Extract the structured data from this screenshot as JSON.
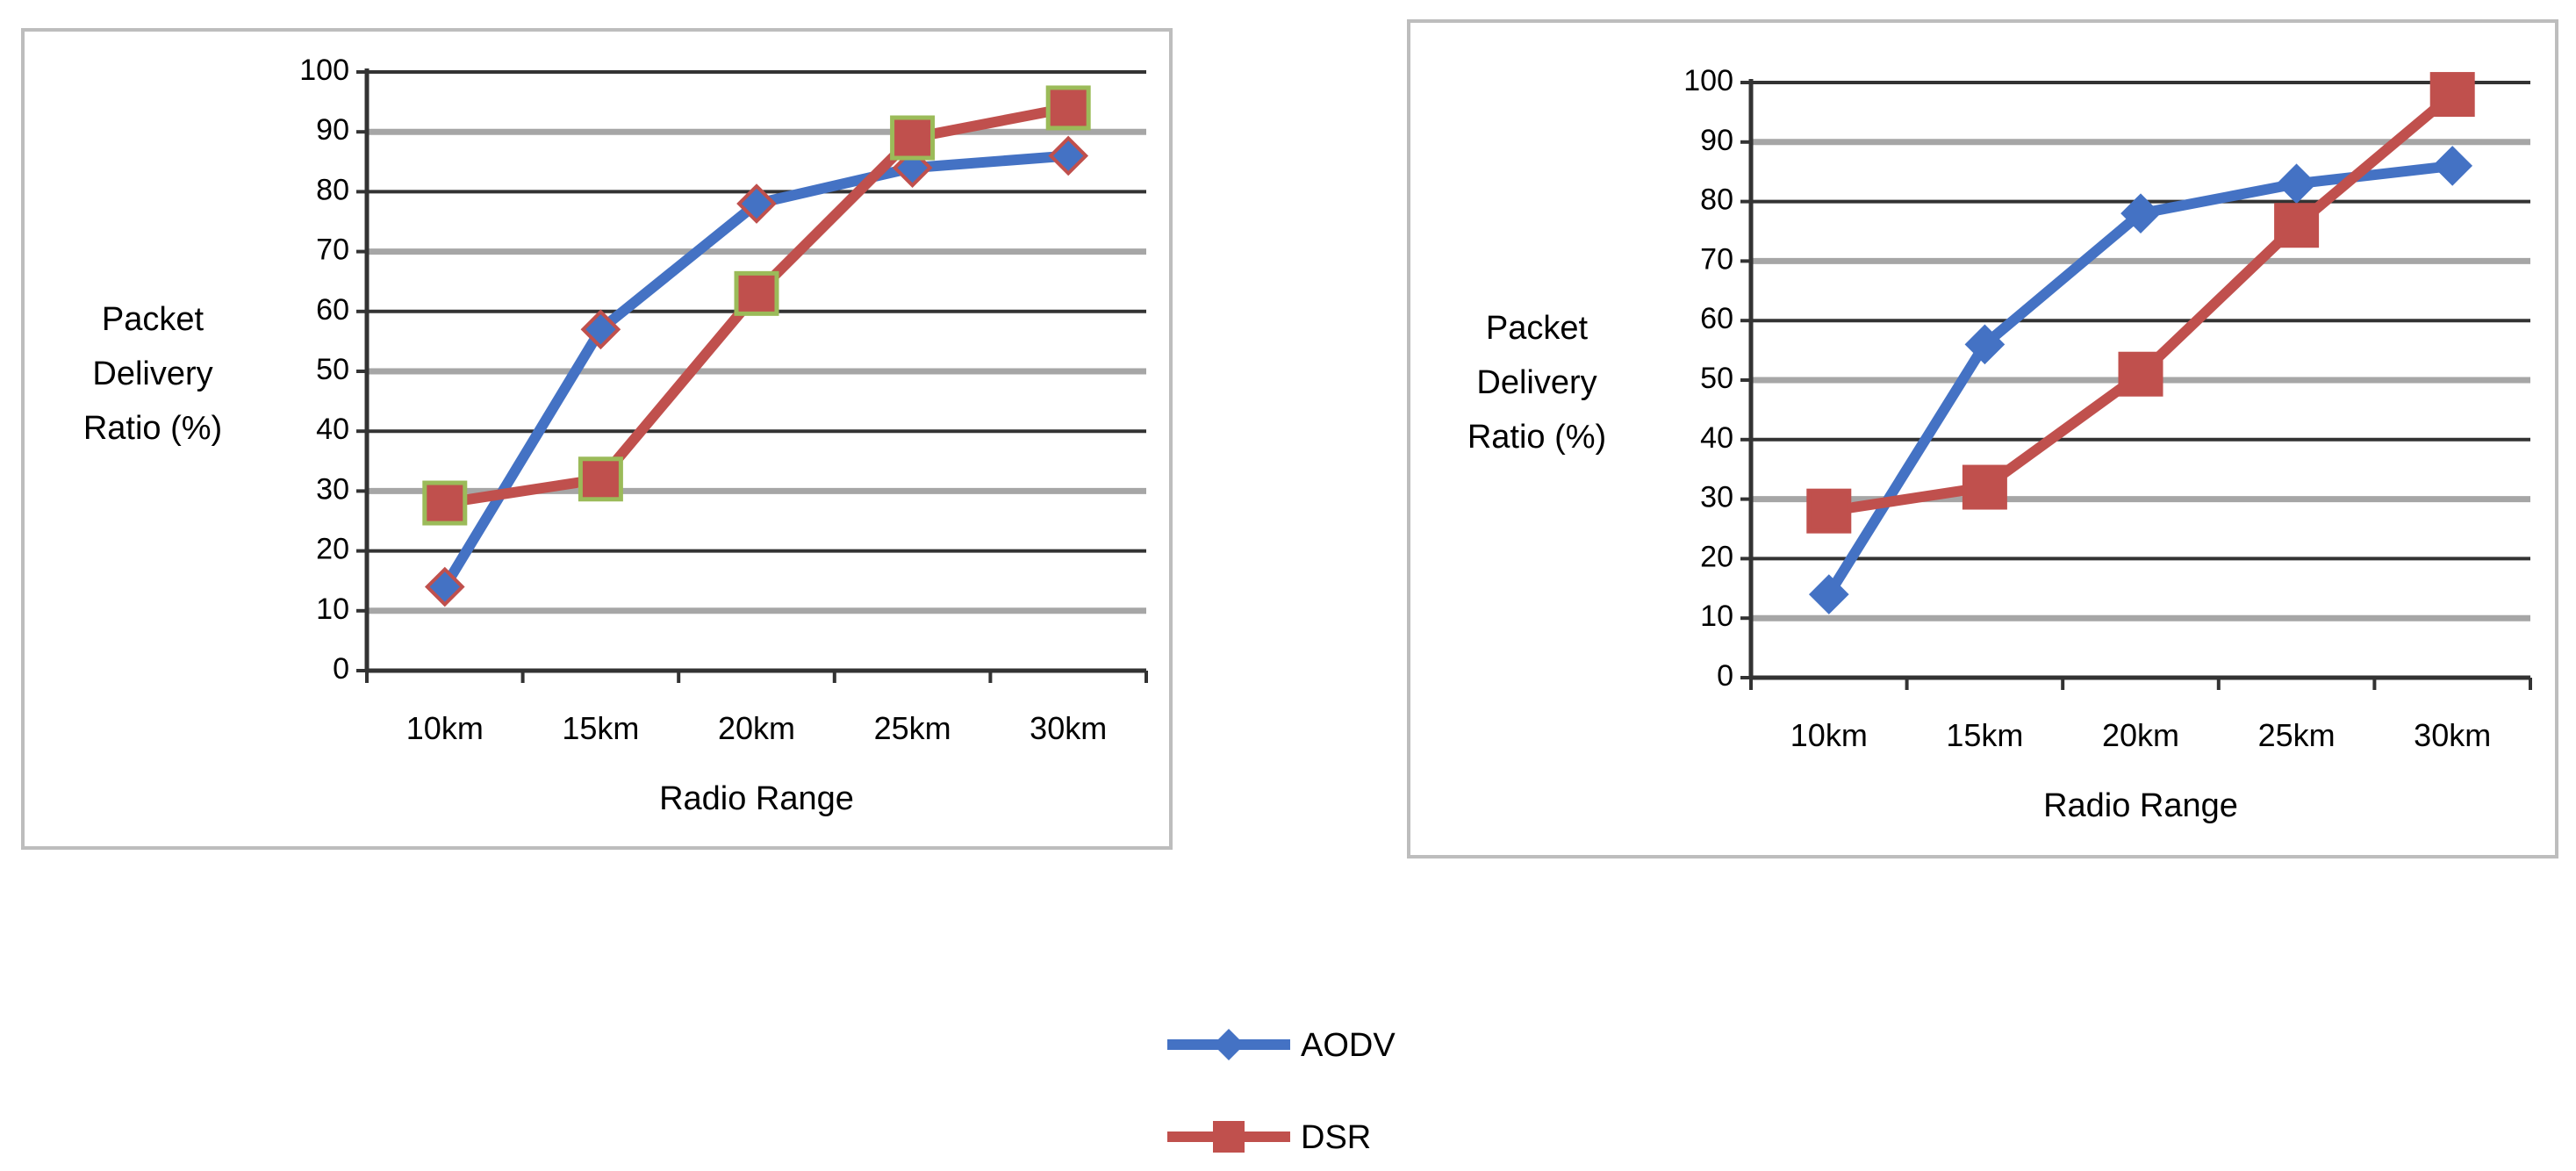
{
  "chart_data": [
    {
      "type": "line",
      "title": "",
      "xlabel": "Radio Range",
      "ylabel_lines": [
        "Packet",
        "Delivery",
        "Ratio (%)"
      ],
      "categories": [
        "10km",
        "15km",
        "20km",
        "25km",
        "30km"
      ],
      "ylim": [
        0,
        100
      ],
      "yticks": [
        0,
        10,
        20,
        30,
        40,
        50,
        60,
        70,
        80,
        90,
        100
      ],
      "grid": true,
      "series": [
        {
          "name": "AODV",
          "values": [
            14,
            57,
            78,
            84,
            86
          ],
          "color": "#4472c4",
          "marker": "diamond",
          "marker_fill": "#4472c4",
          "marker_edge": "#c0504d"
        },
        {
          "name": "DSR",
          "values": [
            28,
            32,
            63,
            89,
            94
          ],
          "color": "#c0504d",
          "marker": "square",
          "marker_fill": "#c0504d",
          "marker_edge": "#9bbb59"
        }
      ]
    },
    {
      "type": "line",
      "title": "",
      "xlabel": "Radio Range",
      "ylabel_lines": [
        "Packet",
        "Delivery",
        "Ratio (%)"
      ],
      "categories": [
        "10km",
        "15km",
        "20km",
        "25km",
        "30km"
      ],
      "ylim": [
        0,
        100
      ],
      "yticks": [
        0,
        10,
        20,
        30,
        40,
        50,
        60,
        70,
        80,
        90,
        100
      ],
      "grid": true,
      "series": [
        {
          "name": "AODV",
          "values": [
            14,
            56,
            78,
            83,
            86
          ],
          "color": "#4472c4",
          "marker": "diamond",
          "marker_fill": "#4472c4",
          "marker_edge": "#4472c4"
        },
        {
          "name": "DSR",
          "values": [
            28,
            32,
            51,
            76,
            98
          ],
          "color": "#c0504d",
          "marker": "square",
          "marker_fill": "#c0504d",
          "marker_edge": "#c0504d"
        }
      ]
    }
  ],
  "legend": {
    "placement": "bottom-center",
    "items": [
      {
        "label": "AODV",
        "color": "#4472c4",
        "marker": "diamond"
      },
      {
        "label": "DSR",
        "color": "#c0504d",
        "marker": "square"
      }
    ]
  }
}
